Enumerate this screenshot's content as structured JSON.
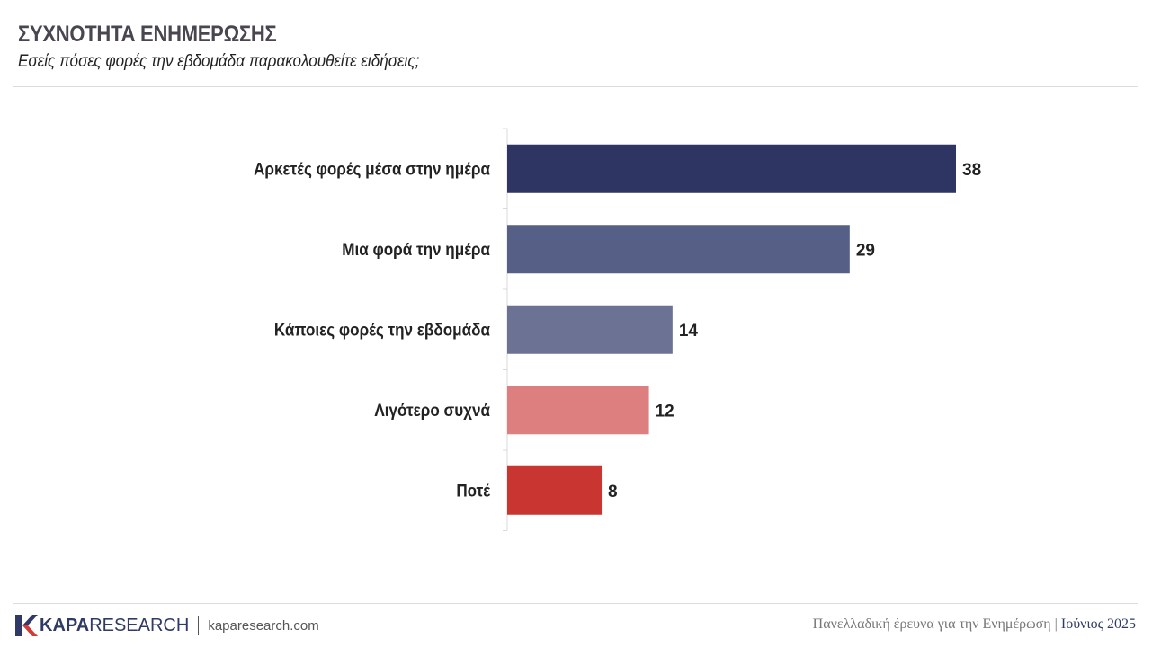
{
  "header": {
    "title": "ΣΥΧΝΟΤΗΤΑ ΕΝΗΜΕΡΩΣΗΣ",
    "subtitle": "Εσείς πόσες φορές την εβδομάδα παρακολουθείτε ειδήσεις;"
  },
  "chart_data": {
    "type": "bar",
    "orientation": "horizontal",
    "categories": [
      "Αρκετές φορές μέσα στην ημέρα",
      "Μια φορά την ημέρα",
      "Κάποιες φορές την εβδομάδα",
      "Λιγότερο συχνά",
      "Ποτέ"
    ],
    "values": [
      38,
      29,
      14,
      12,
      8
    ],
    "colors": [
      "#2e3563",
      "#565f85",
      "#6b7293",
      "#de7f7f",
      "#c93631"
    ],
    "xlim": [
      0,
      38
    ],
    "grid": false,
    "legend": "none"
  },
  "footer": {
    "brand_bold": "KAPA",
    "brand_regular": "RESEARCH",
    "website": "kaparesearch.com",
    "survey": "Πανελλαδική έρευνα για την Ενημέρωση",
    "separator": "|",
    "date": "Ιούνιος 2025"
  }
}
